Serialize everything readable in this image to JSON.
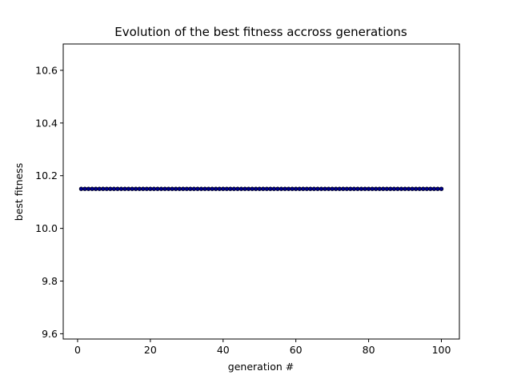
{
  "chart_data": {
    "type": "scatter",
    "title": "Evolution of the best fitness accross generations",
    "xlabel": "generation #",
    "ylabel": "best fitness",
    "xlim": [
      -3.95,
      104.95
    ],
    "ylim": [
      9.58,
      10.7
    ],
    "xticks": [
      0,
      20,
      40,
      60,
      80,
      100
    ],
    "yticks": [
      9.6,
      9.8,
      10.0,
      10.2,
      10.4,
      10.6
    ],
    "xtick_labels": [
      "0",
      "20",
      "40",
      "60",
      "80",
      "100"
    ],
    "ytick_labels": [
      "9.6",
      "9.8",
      "10.0",
      "10.2",
      "10.4",
      "10.6"
    ],
    "grid": false,
    "legend": "none",
    "series": [
      {
        "color": "#00008b",
        "x_start": 1,
        "x_end": 100,
        "x_step": 1,
        "y_constant": 10.15
      }
    ]
  }
}
